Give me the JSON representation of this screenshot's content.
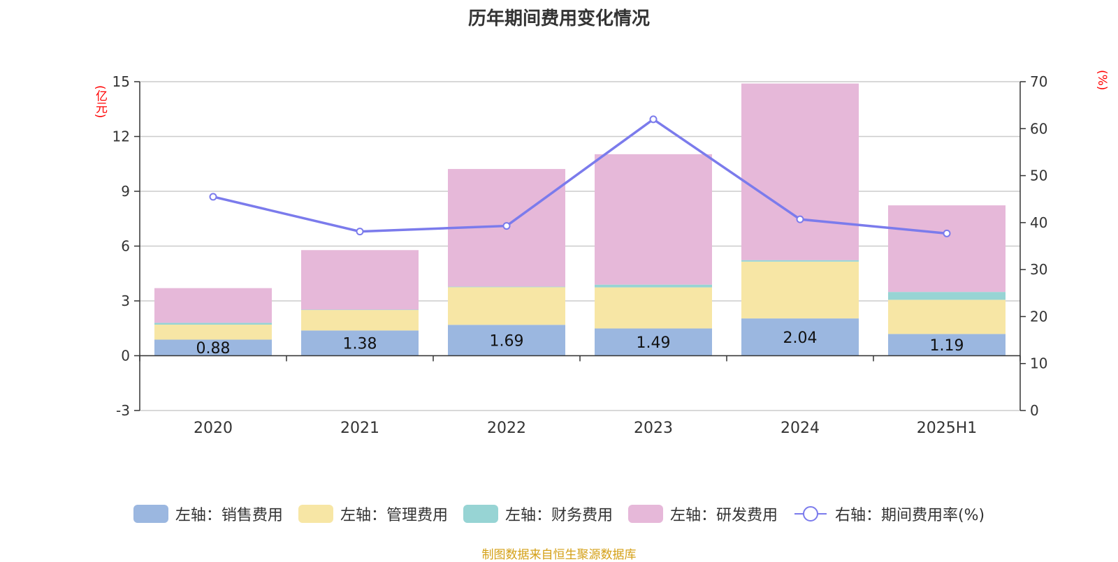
{
  "chart_data": {
    "type": "bar",
    "title": "历年期间费用变化情况",
    "left_unit": "(亿元)",
    "right_unit": "(%)",
    "categories": [
      "2020",
      "2021",
      "2022",
      "2023",
      "2024",
      "2025H1"
    ],
    "left_axis": {
      "ticks": [
        -3,
        0,
        3,
        6,
        9,
        12,
        15
      ],
      "ylim": [
        -3,
        15
      ]
    },
    "right_axis": {
      "ticks": [
        0,
        10,
        20,
        30,
        40,
        50,
        60,
        70
      ],
      "ylim": [
        0,
        70
      ]
    },
    "series": [
      {
        "name": "左轴：销售费用",
        "type": "bar",
        "color": "#9bb7e0",
        "values": [
          0.88,
          1.38,
          1.69,
          1.49,
          2.04,
          1.19
        ],
        "labels": [
          "0.88",
          "1.38",
          "1.69",
          "1.49",
          "2.04",
          "1.19"
        ]
      },
      {
        "name": "左轴：管理费用",
        "type": "bar",
        "color": "#f7e6a5",
        "values": [
          0.82,
          1.12,
          2.06,
          2.25,
          3.11,
          1.87
        ]
      },
      {
        "name": "左轴：财务费用",
        "type": "bar",
        "color": "#97d4d4",
        "values": [
          0.1,
          0.02,
          0.03,
          0.15,
          0.08,
          0.43
        ]
      },
      {
        "name": "左轴：研发费用",
        "type": "bar",
        "color": "#e6b8d9",
        "values": [
          1.9,
          3.26,
          6.44,
          7.14,
          9.67,
          4.74
        ]
      },
      {
        "name": "右轴：期间费用率(%)",
        "type": "line",
        "color": "#7b7bec",
        "values": [
          45.5,
          38.1,
          39.3,
          62.0,
          40.7,
          37.7
        ]
      }
    ],
    "grid": true,
    "legend_position": "bottom"
  },
  "source_note": "制图数据来自恒生聚源数据库"
}
